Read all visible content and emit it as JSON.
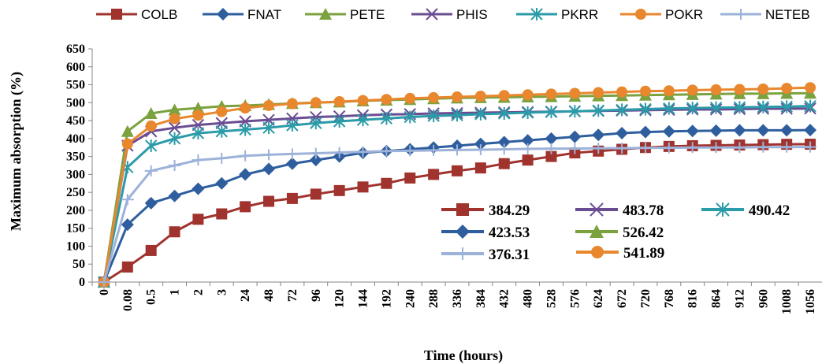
{
  "chart_data": {
    "type": "line",
    "xlabel": "Time (hours)",
    "ylabel": "Maximum absorption (%)",
    "ylim": [
      0,
      650
    ],
    "yticks": [
      "0",
      "50",
      "100",
      "150",
      "200",
      "250",
      "300",
      "350",
      "400",
      "450",
      "500",
      "550",
      "600",
      "650"
    ],
    "categories": [
      "0",
      "0.08",
      "0.5",
      "1",
      "2",
      "3",
      "24",
      "48",
      "72",
      "96",
      "120",
      "144",
      "192",
      "240",
      "288",
      "336",
      "384",
      "432",
      "480",
      "528",
      "576",
      "624",
      "672",
      "720",
      "768",
      "816",
      "864",
      "912",
      "960",
      "1008",
      "1056"
    ],
    "grid": false,
    "legend_position": "top",
    "series": [
      {
        "name": "COLB",
        "color": "#A0332E",
        "marker": "square",
        "values": [
          0,
          42,
          88,
          140,
          175,
          190,
          210,
          225,
          233,
          245,
          255,
          265,
          275,
          290,
          300,
          310,
          318,
          330,
          340,
          350,
          360,
          365,
          370,
          375,
          378,
          380,
          381,
          382,
          383,
          384,
          384.29
        ]
      },
      {
        "name": "FNAT",
        "color": "#2E5E9E",
        "marker": "diamond",
        "values": [
          0,
          160,
          220,
          240,
          260,
          275,
          300,
          315,
          330,
          340,
          350,
          360,
          365,
          370,
          375,
          380,
          385,
          390,
          395,
          400,
          405,
          410,
          415,
          418,
          420,
          421,
          422,
          423,
          423,
          423,
          423.53
        ]
      },
      {
        "name": "PETE",
        "color": "#7BA23F",
        "marker": "triangle",
        "values": [
          0,
          420,
          470,
          480,
          485,
          490,
          492,
          495,
          498,
          500,
          502,
          505,
          507,
          509,
          511,
          513,
          514,
          515,
          516,
          517,
          518,
          519,
          520,
          521,
          522,
          523,
          524,
          525,
          525,
          526,
          526.42
        ]
      },
      {
        "name": "PHIS",
        "color": "#6A4C93",
        "marker": "x",
        "values": [
          0,
          380,
          420,
          430,
          438,
          443,
          448,
          452,
          456,
          460,
          462,
          465,
          467,
          468,
          470,
          471,
          472,
          473,
          474,
          475,
          476,
          477,
          478,
          479,
          480,
          481,
          481,
          482,
          483,
          483,
          483.78
        ]
      },
      {
        "name": "PKRR",
        "color": "#2A9BA8",
        "marker": "star",
        "values": [
          0,
          320,
          380,
          400,
          415,
          420,
          425,
          430,
          437,
          443,
          448,
          452,
          456,
          460,
          463,
          465,
          468,
          470,
          472,
          474,
          476,
          478,
          480,
          482,
          484,
          485,
          486,
          487,
          488,
          489,
          490.42
        ]
      },
      {
        "name": "POKR",
        "color": "#E8872E",
        "marker": "circle",
        "values": [
          0,
          385,
          435,
          455,
          465,
          475,
          485,
          492,
          497,
          500,
          503,
          506,
          509,
          512,
          514,
          516,
          518,
          520,
          522,
          524,
          526,
          528,
          530,
          532,
          533,
          535,
          536,
          537,
          538,
          540,
          541.89
        ]
      },
      {
        "name": "NETEB",
        "color": "#9DB2D9",
        "marker": "plus",
        "values": [
          0,
          230,
          310,
          325,
          340,
          345,
          352,
          355,
          357,
          359,
          361,
          363,
          365,
          366,
          367,
          368,
          369,
          370,
          371,
          372,
          372,
          373,
          373,
          374,
          374,
          375,
          375,
          375,
          376,
          376,
          376.31
        ]
      }
    ],
    "annotations": [
      {
        "label": "384.29",
        "series": "COLB"
      },
      {
        "label": "423.53",
        "series": "FNAT"
      },
      {
        "label": "376.31",
        "series": "NETEB"
      },
      {
        "label": "483.78",
        "series": "PHIS"
      },
      {
        "label": "526.42",
        "series": "PETE"
      },
      {
        "label": "490.42",
        "series": "PKRR"
      },
      {
        "label": "541.89",
        "series": "POKR"
      }
    ]
  }
}
